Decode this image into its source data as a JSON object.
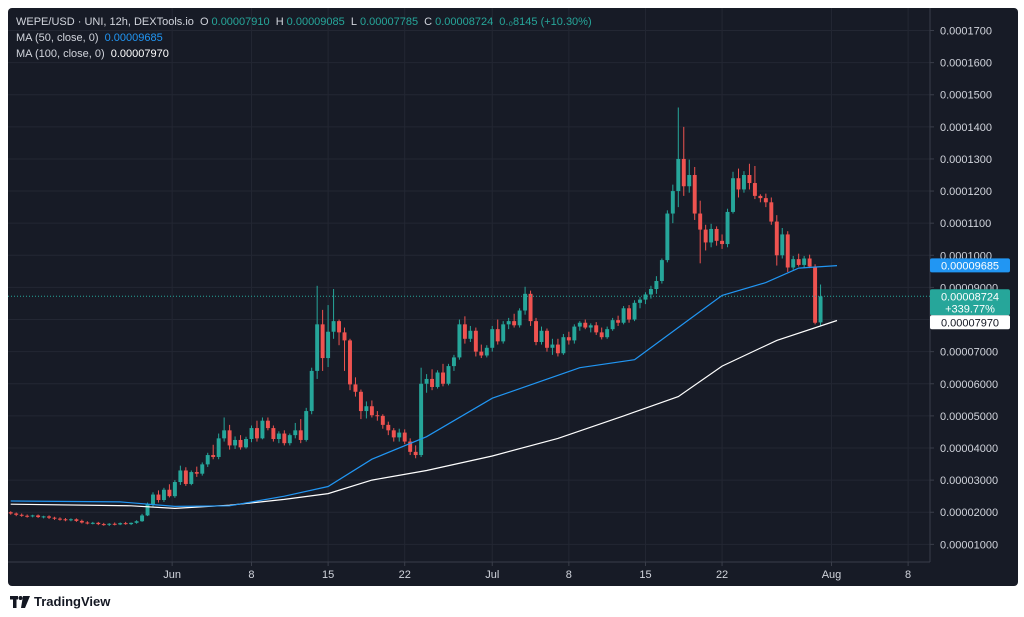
{
  "header": {
    "symbol": "WEPE/USD · UNI, 12h, DEXTools.io",
    "o_label": "O",
    "o_value": "0.00007910",
    "h_label": "H",
    "h_value": "0.00009085",
    "l_label": "L",
    "l_value": "0.00007785",
    "c_label": "C",
    "c_value": "0.00008724",
    "change": "0.₀8145 (+10.30%)"
  },
  "indicators": [
    {
      "label": "MA (50, close, 0)",
      "value": "0.00009685",
      "color": "#2196f3"
    },
    {
      "label": "MA (100, close, 0)",
      "value": "0.00007970",
      "color": "#ffffff"
    }
  ],
  "price_tags": {
    "ma50": "0.00009685",
    "last": "0.00008724",
    "last_change": "+339.77%",
    "ma100": "0.00007970"
  },
  "brand": {
    "name": "TradingView",
    "logo_icon": "tradingview-logo-icon"
  },
  "colors": {
    "up": "#26a69a",
    "down": "#ef5350",
    "ma50": "#2196f3",
    "ma100": "#ffffff",
    "background": "#171b26",
    "grid": "#232733",
    "axis_text": "#d1d4dc"
  },
  "chart_data": {
    "type": "candlestick",
    "interval": "12h",
    "grid": true,
    "y_axis": {
      "side": "right",
      "ticks": [
        "0.0001700",
        "0.0001600",
        "0.0001500",
        "0.0001400",
        "0.0001300",
        "0.0001200",
        "0.0001100",
        "0.0001000",
        "0.00009000",
        "0.00008000",
        "0.00007000",
        "0.00006000",
        "0.00005000",
        "0.00004000",
        "0.00003000",
        "0.00002000",
        "0.00001000"
      ],
      "tick_values": [
        0.00017,
        0.00016,
        0.00015,
        0.00014,
        0.00013,
        0.00012,
        0.00011,
        0.0001,
        9e-05,
        8e-05,
        7e-05,
        6e-05,
        5e-05,
        4e-05,
        3e-05,
        2e-05,
        1e-05
      ],
      "range": [
        4.5e-06,
        0.000177
      ]
    },
    "x_axis": {
      "ticks": [
        {
          "label": "Jun",
          "index": 29.5
        },
        {
          "label": "8",
          "index": 44
        },
        {
          "label": "15",
          "index": 58
        },
        {
          "label": "22",
          "index": 72
        },
        {
          "label": "Jul",
          "index": 88
        },
        {
          "label": "8",
          "index": 102
        },
        {
          "label": "15",
          "index": 116
        },
        {
          "label": "22",
          "index": 130
        },
        {
          "label": "Aug",
          "index": 150
        },
        {
          "label": "8",
          "index": 164
        }
      ],
      "range": [
        -0.5,
        168
      ]
    },
    "last_price": 8.724e-05,
    "candles": [
      [
        2e-05,
        2.03e-05,
        1.92e-05,
        1.96e-05
      ],
      [
        1.96e-05,
        1.99e-05,
        1.88e-05,
        1.92e-05
      ],
      [
        1.92e-05,
        1.96e-05,
        1.86e-05,
        1.89e-05
      ],
      [
        1.89e-05,
        1.93e-05,
        1.83e-05,
        1.87e-05
      ],
      [
        1.87e-05,
        1.92e-05,
        1.84e-05,
        1.9e-05
      ],
      [
        1.9e-05,
        1.93e-05,
        1.82e-05,
        1.85e-05
      ],
      [
        1.85e-05,
        1.89e-05,
        1.81e-05,
        1.87e-05
      ],
      [
        1.87e-05,
        1.9e-05,
        1.79e-05,
        1.83e-05
      ],
      [
        1.83e-05,
        1.86e-05,
        1.76e-05,
        1.8e-05
      ],
      [
        1.8e-05,
        1.84e-05,
        1.74e-05,
        1.78e-05
      ],
      [
        1.78e-05,
        1.82e-05,
        1.72e-05,
        1.75e-05
      ],
      [
        1.75e-05,
        1.81e-05,
        1.72e-05,
        1.78e-05
      ],
      [
        1.78e-05,
        1.81e-05,
        1.7e-05,
        1.73e-05
      ],
      [
        1.73e-05,
        1.77e-05,
        1.65e-05,
        1.68e-05
      ],
      [
        1.68e-05,
        1.72e-05,
        1.62e-05,
        1.65e-05
      ],
      [
        1.65e-05,
        1.7e-05,
        1.62e-05,
        1.67e-05
      ],
      [
        1.67e-05,
        1.7e-05,
        1.6e-05,
        1.63e-05
      ],
      [
        1.63e-05,
        1.67e-05,
        1.58e-05,
        1.62e-05
      ],
      [
        1.62e-05,
        1.66e-05,
        1.57e-05,
        1.64e-05
      ],
      [
        1.64e-05,
        1.68e-05,
        1.59e-05,
        1.62e-05
      ],
      [
        1.62e-05,
        1.68e-05,
        1.6e-05,
        1.66e-05
      ],
      [
        1.66e-05,
        1.7e-05,
        1.61e-05,
        1.63e-05
      ],
      [
        1.63e-05,
        1.68e-05,
        1.6e-05,
        1.67e-05
      ],
      [
        1.67e-05,
        1.75e-05,
        1.64e-05,
        1.72e-05
      ],
      [
        1.72e-05,
        1.95e-05,
        1.7e-05,
        1.9e-05
      ],
      [
        1.9e-05,
        2.3e-05,
        1.88e-05,
        2.24e-05
      ],
      [
        2.24e-05,
        2.62e-05,
        2.18e-05,
        2.55e-05
      ],
      [
        2.55e-05,
        2.68e-05,
        2.3e-05,
        2.38e-05
      ],
      [
        2.38e-05,
        2.76e-05,
        2.32e-05,
        2.7e-05
      ],
      [
        2.7e-05,
        2.87e-05,
        2.46e-05,
        2.5e-05
      ],
      [
        2.5e-05,
        3e-05,
        2.45e-05,
        2.94e-05
      ],
      [
        2.94e-05,
        3.45e-05,
        2.85e-05,
        3.3e-05
      ],
      [
        3.3e-05,
        3.4e-05,
        2.82e-05,
        2.88e-05
      ],
      [
        2.88e-05,
        3.3e-05,
        2.84e-05,
        3.25e-05
      ],
      [
        3.25e-05,
        3.42e-05,
        3.1e-05,
        3.2e-05
      ],
      [
        3.2e-05,
        3.55e-05,
        3.14e-05,
        3.49e-05
      ],
      [
        3.49e-05,
        3.85e-05,
        3.41e-05,
        3.78e-05
      ],
      [
        3.78e-05,
        4.1e-05,
        3.65e-05,
        3.72e-05
      ],
      [
        3.72e-05,
        4.45e-05,
        3.65e-05,
        4.3e-05
      ],
      [
        4.3e-05,
        4.95e-05,
        4.2e-05,
        4.55e-05
      ],
      [
        4.55e-05,
        4.72e-05,
        3.95e-05,
        4.08e-05
      ],
      [
        4.08e-05,
        4.36e-05,
        3.97e-05,
        4.25e-05
      ],
      [
        4.25e-05,
        4.4e-05,
        3.95e-05,
        4.02e-05
      ],
      [
        4.02e-05,
        4.35e-05,
        3.98e-05,
        4.28e-05
      ],
      [
        4.28e-05,
        4.7e-05,
        4.18e-05,
        4.62e-05
      ],
      [
        4.62e-05,
        4.85e-05,
        4.2e-05,
        4.3e-05
      ],
      [
        4.3e-05,
        4.95e-05,
        4.27e-05,
        4.85e-05
      ],
      [
        4.85e-05,
        4.95e-05,
        4.55e-05,
        4.62e-05
      ],
      [
        4.62e-05,
        4.7e-05,
        4.2e-05,
        4.28e-05
      ],
      [
        4.28e-05,
        4.52e-05,
        4.15e-05,
        4.45e-05
      ],
      [
        4.45e-05,
        4.55e-05,
        4.08e-05,
        4.15e-05
      ],
      [
        4.15e-05,
        4.45e-05,
        4.08e-05,
        4.4e-05
      ],
      [
        4.4e-05,
        4.78e-05,
        4.3e-05,
        4.55e-05
      ],
      [
        4.55e-05,
        4.9e-05,
        4.15e-05,
        4.25e-05
      ],
      [
        4.25e-05,
        5.25e-05,
        4.2e-05,
        5.15e-05
      ],
      [
        5.15e-05,
        6.5e-05,
        5.05e-05,
        6.4e-05
      ],
      [
        6.4e-05,
        9.05e-05,
        6.15e-05,
        7.85e-05
      ],
      [
        7.85e-05,
        8.3e-05,
        6.4e-05,
        6.8e-05
      ],
      [
        6.8e-05,
        8.45e-05,
        6.52e-05,
        7.62e-05
      ],
      [
        7.62e-05,
        8.95e-05,
        7.4e-05,
        7.95e-05
      ],
      [
        7.95e-05,
        8e-05,
        7.2e-05,
        7.6e-05
      ],
      [
        7.6e-05,
        7.75e-05,
        6.4e-05,
        7.35e-05
      ],
      [
        7.35e-05,
        7.4e-05,
        5.8e-05,
        5.98e-05
      ],
      [
        5.98e-05,
        6.2e-05,
        5.6e-05,
        5.75e-05
      ],
      [
        5.75e-05,
        5.82e-05,
        4.9e-05,
        5.15e-05
      ],
      [
        5.15e-05,
        5.45e-05,
        4.92e-05,
        5.3e-05
      ],
      [
        5.3e-05,
        5.48e-05,
        4.95e-05,
        5.02e-05
      ],
      [
        5.02e-05,
        5.15e-05,
        4.85e-05,
        5e-05
      ],
      [
        5e-05,
        5.05e-05,
        4.6e-05,
        4.72e-05
      ],
      [
        4.72e-05,
        4.82e-05,
        4.4e-05,
        4.55e-05
      ],
      [
        4.55e-05,
        4.62e-05,
        4.2e-05,
        4.33e-05
      ],
      [
        4.33e-05,
        4.6e-05,
        4.2e-05,
        4.48e-05
      ],
      [
        4.48e-05,
        4.58e-05,
        4.12e-05,
        4.2e-05
      ],
      [
        4.2e-05,
        4.3e-05,
        3.78e-05,
        3.88e-05
      ],
      [
        3.88e-05,
        4.08e-05,
        3.68e-05,
        3.78e-05
      ],
      [
        3.78e-05,
        6.5e-05,
        3.72e-05,
        6e-05
      ],
      [
        6e-05,
        6.3e-05,
        5.72e-05,
        6.15e-05
      ],
      [
        6.15e-05,
        6.45e-05,
        5.8e-05,
        5.9e-05
      ],
      [
        5.9e-05,
        6.42e-05,
        5.85e-05,
        6.35e-05
      ],
      [
        6.35e-05,
        6.62e-05,
        5.92e-05,
        6e-05
      ],
      [
        6e-05,
        6.62e-05,
        5.95e-05,
        6.55e-05
      ],
      [
        6.55e-05,
        6.9e-05,
        6.4e-05,
        6.82e-05
      ],
      [
        6.82e-05,
        8e-05,
        6.75e-05,
        7.85e-05
      ],
      [
        7.85e-05,
        8.1e-05,
        7.25e-05,
        7.4e-05
      ],
      [
        7.4e-05,
        7.8e-05,
        7.3e-05,
        7.65e-05
      ],
      [
        7.65e-05,
        7.75e-05,
        6.85e-05,
        7e-05
      ],
      [
        7e-05,
        7.22e-05,
        6.8e-05,
        6.88e-05
      ],
      [
        6.88e-05,
        7.2e-05,
        6.82e-05,
        7.12e-05
      ],
      [
        7.12e-05,
        7.8e-05,
        7e-05,
        7.7e-05
      ],
      [
        7.7e-05,
        8e-05,
        7.22e-05,
        7.32e-05
      ],
      [
        7.32e-05,
        7.95e-05,
        7.25e-05,
        7.85e-05
      ],
      [
        7.85e-05,
        8.05e-05,
        7.7e-05,
        7.95e-05
      ],
      [
        7.95e-05,
        8.18e-05,
        7.75e-05,
        7.82e-05
      ],
      [
        7.82e-05,
        8.35e-05,
        7.75e-05,
        8.28e-05
      ],
      [
        8.28e-05,
        9.02e-05,
        8.15e-05,
        8.8e-05
      ],
      [
        8.8e-05,
        8.9e-05,
        7.8e-05,
        7.95e-05
      ],
      [
        7.95e-05,
        8.05e-05,
        7.2e-05,
        7.3e-05
      ],
      [
        7.3e-05,
        7.78e-05,
        7.22e-05,
        7.65e-05
      ],
      [
        7.65e-05,
        7.72e-05,
        7e-05,
        7.12e-05
      ],
      [
        7.12e-05,
        7.4e-05,
        6.9e-05,
        7.22e-05
      ],
      [
        7.22e-05,
        7.4e-05,
        6.85e-05,
        6.95e-05
      ],
      [
        6.95e-05,
        7.55e-05,
        6.9e-05,
        7.45e-05
      ],
      [
        7.45e-05,
        7.62e-05,
        7.22e-05,
        7.35e-05
      ],
      [
        7.35e-05,
        7.85e-05,
        7.25e-05,
        7.78e-05
      ],
      [
        7.78e-05,
        7.95e-05,
        7.65e-05,
        7.9e-05
      ],
      [
        7.9e-05,
        8e-05,
        7.7e-05,
        7.75e-05
      ],
      [
        7.75e-05,
        7.88e-05,
        7.6e-05,
        7.82e-05
      ],
      [
        7.82e-05,
        7.92e-05,
        7.52e-05,
        7.6e-05
      ],
      [
        7.6e-05,
        7.75e-05,
        7.38e-05,
        7.45e-05
      ],
      [
        7.45e-05,
        7.78e-05,
        7.4e-05,
        7.7e-05
      ],
      [
        7.7e-05,
        8.05e-05,
        7.65e-05,
        7.98e-05
      ],
      [
        7.98e-05,
        8.12e-05,
        7.8e-05,
        7.9e-05
      ],
      [
        7.9e-05,
        8.42e-05,
        7.85e-05,
        8.35e-05
      ],
      [
        8.35e-05,
        8.45e-05,
        7.9e-05,
        8e-05
      ],
      [
        8e-05,
        8.6e-05,
        7.95e-05,
        8.52e-05
      ],
      [
        8.52e-05,
        8.7e-05,
        8.35e-05,
        8.62e-05
      ],
      [
        8.62e-05,
        8.85e-05,
        8.48e-05,
        8.78e-05
      ],
      [
        8.78e-05,
        9.05e-05,
        8.65e-05,
        8.95e-05
      ],
      [
        8.95e-05,
        9.35e-05,
        8.8e-05,
        9.2e-05
      ],
      [
        9.2e-05,
        9.9e-05,
        9.12e-05,
        9.85e-05
      ],
      [
        9.85e-05,
        0.000114,
        9.78e-05,
        0.000113
      ],
      [
        0.000113,
        0.000122,
        0.00011,
        0.00012
      ],
      [
        0.00012,
        0.000146,
        0.000115,
        0.00013
      ],
      [
        0.00013,
        0.00014,
        0.0001185,
        0.0001215
      ],
      [
        0.0001215,
        0.0001298,
        0.0001195,
        0.000125
      ],
      [
        0.000125,
        0.0001275,
        0.000111,
        0.000113
      ],
      [
        0.000113,
        0.000117,
        9.75e-05,
        0.000108
      ],
      [
        0.000108,
        0.0001095,
        0.0001015,
        0.000104
      ],
      [
        0.000104,
        0.0001098,
        0.0001025,
        0.0001082
      ],
      [
        0.0001082,
        0.000109,
        0.000103,
        0.0001045
      ],
      [
        0.0001045,
        0.0001065,
        0.000102,
        0.0001035
      ],
      [
        0.0001035,
        0.0001145,
        0.0001025,
        0.0001135
      ],
      [
        0.0001135,
        0.000126,
        0.000113,
        0.000124
      ],
      [
        0.000124,
        0.000127,
        0.000118,
        0.0001205
      ],
      [
        0.0001205,
        0.0001262,
        0.0001195,
        0.000125
      ],
      [
        0.000125,
        0.0001285,
        0.0001205,
        0.0001225
      ],
      [
        0.0001225,
        0.0001278,
        0.0001175,
        0.0001185
      ],
      [
        0.0001185,
        0.000119,
        0.0001165,
        0.0001178
      ],
      [
        0.0001178,
        0.0001192,
        0.000115,
        0.0001165
      ],
      [
        0.0001165,
        0.000118,
        0.0001095,
        0.0001105
      ],
      [
        0.0001105,
        0.0001125,
        9.68e-05,
        0.0001
      ],
      [
        0.0001,
        0.0001085,
        9.9e-05,
        0.0001065
      ],
      [
        0.0001065,
        0.0001075,
        9.48e-05,
        9.62e-05
      ],
      [
        9.62e-05,
        9.98e-05,
        9.55e-05,
        9.88e-05
      ],
      [
        9.88e-05,
        0.0001005,
        9.65e-05,
        9.7e-05
      ],
      [
        9.7e-05,
        9.98e-05,
        9.62e-05,
        9.9e-05
      ],
      [
        9.9e-05,
        0.0001002,
        9.6e-05,
        9.65e-05
      ],
      [
        9.65e-05,
        9.72e-05,
        7.85e-05,
        7.9e-05
      ],
      [
        7.91e-05,
        9.09e-05,
        7.79e-05,
        8.72e-05
      ]
    ],
    "ma50": [
      [
        0,
        2.35e-05
      ],
      [
        20,
        2.32e-05
      ],
      [
        30,
        2.18e-05
      ],
      [
        40,
        2.2e-05
      ],
      [
        50,
        2.5e-05
      ],
      [
        58,
        2.8e-05
      ],
      [
        66,
        3.65e-05
      ],
      [
        76,
        4.35e-05
      ],
      [
        88,
        5.55e-05
      ],
      [
        104,
        6.5e-05
      ],
      [
        114,
        6.75e-05
      ],
      [
        124,
        8e-05
      ],
      [
        130,
        8.75e-05
      ],
      [
        138,
        9.15e-05
      ],
      [
        144,
        9.6e-05
      ],
      [
        151,
        9.68e-05
      ]
    ],
    "ma100": [
      [
        0,
        2.25e-05
      ],
      [
        22,
        2.2e-05
      ],
      [
        30,
        2.12e-05
      ],
      [
        40,
        2.22e-05
      ],
      [
        50,
        2.4e-05
      ],
      [
        58,
        2.58e-05
      ],
      [
        66,
        3e-05
      ],
      [
        76,
        3.3e-05
      ],
      [
        88,
        3.75e-05
      ],
      [
        100,
        4.3e-05
      ],
      [
        112,
        5e-05
      ],
      [
        122,
        5.6e-05
      ],
      [
        130,
        6.55e-05
      ],
      [
        140,
        7.35e-05
      ],
      [
        151,
        7.97e-05
      ]
    ]
  }
}
